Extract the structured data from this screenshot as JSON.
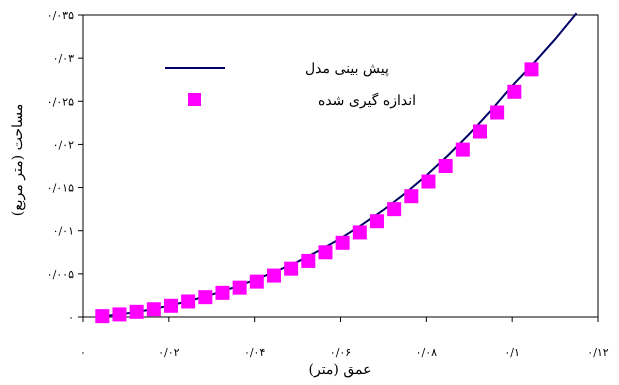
{
  "chart_data": {
    "type": "line",
    "xlabel": "عمق (متر)",
    "ylabel": "مساحت (متر مربع)",
    "xlim": [
      0,
      0.12
    ],
    "ylim": [
      0,
      0.035
    ],
    "x_ticks": [
      0,
      0.02,
      0.04,
      0.06,
      0.08,
      0.1,
      0.12
    ],
    "x_tick_labels": [
      "۰",
      "۰/۰۲",
      "۰/۰۴",
      "۰/۰۶",
      "۰/۰۸",
      "۰/۱",
      "۰/۱۲"
    ],
    "y_ticks": [
      0,
      0.005,
      0.01,
      0.015,
      0.02,
      0.025,
      0.03,
      0.035
    ],
    "y_tick_labels": [
      "۰",
      "۰/۰۰۵",
      "۰/۰۱",
      "۰/۰۱۵",
      "۰/۰۲",
      "۰/۰۲۵",
      "۰/۰۳",
      "۰/۰۳۵"
    ],
    "grid": false,
    "legend_position": "top-left",
    "series": [
      {
        "name": "پیش بینی مدل",
        "type": "line",
        "color": "#000066",
        "x": [
          0.005,
          0.01,
          0.015,
          0.02,
          0.025,
          0.03,
          0.035,
          0.04,
          0.045,
          0.05,
          0.055,
          0.06,
          0.065,
          0.07,
          0.075,
          0.08,
          0.085,
          0.09,
          0.095,
          0.1,
          0.105,
          0.11,
          0.115
        ],
        "values": [
          0.0001,
          0.0004,
          0.0008,
          0.0013,
          0.0019,
          0.0026,
          0.0034,
          0.0043,
          0.0053,
          0.0064,
          0.0077,
          0.0091,
          0.0107,
          0.0124,
          0.0143,
          0.0164,
          0.0187,
          0.0212,
          0.0239,
          0.0268,
          0.0294,
          0.0322,
          0.0352
        ]
      },
      {
        "name": "اندازه گیری شده",
        "type": "scatter",
        "color": "#ff00ff",
        "marker": "square",
        "x": [
          0.0045,
          0.0085,
          0.0125,
          0.0165,
          0.0205,
          0.0245,
          0.0285,
          0.0325,
          0.0365,
          0.0405,
          0.0445,
          0.0485,
          0.0525,
          0.0565,
          0.0605,
          0.0645,
          0.0685,
          0.0725,
          0.0765,
          0.0805,
          0.0845,
          0.0885,
          0.0925,
          0.0965,
          0.1005,
          0.1045
        ],
        "values": [
          0.0001,
          0.0003,
          0.0006,
          0.0009,
          0.0013,
          0.0018,
          0.0023,
          0.0028,
          0.0034,
          0.0041,
          0.0048,
          0.0056,
          0.0065,
          0.0075,
          0.0086,
          0.0098,
          0.0111,
          0.0125,
          0.014,
          0.0157,
          0.0175,
          0.0194,
          0.0215,
          0.0237,
          0.0261,
          0.0287
        ]
      }
    ]
  }
}
